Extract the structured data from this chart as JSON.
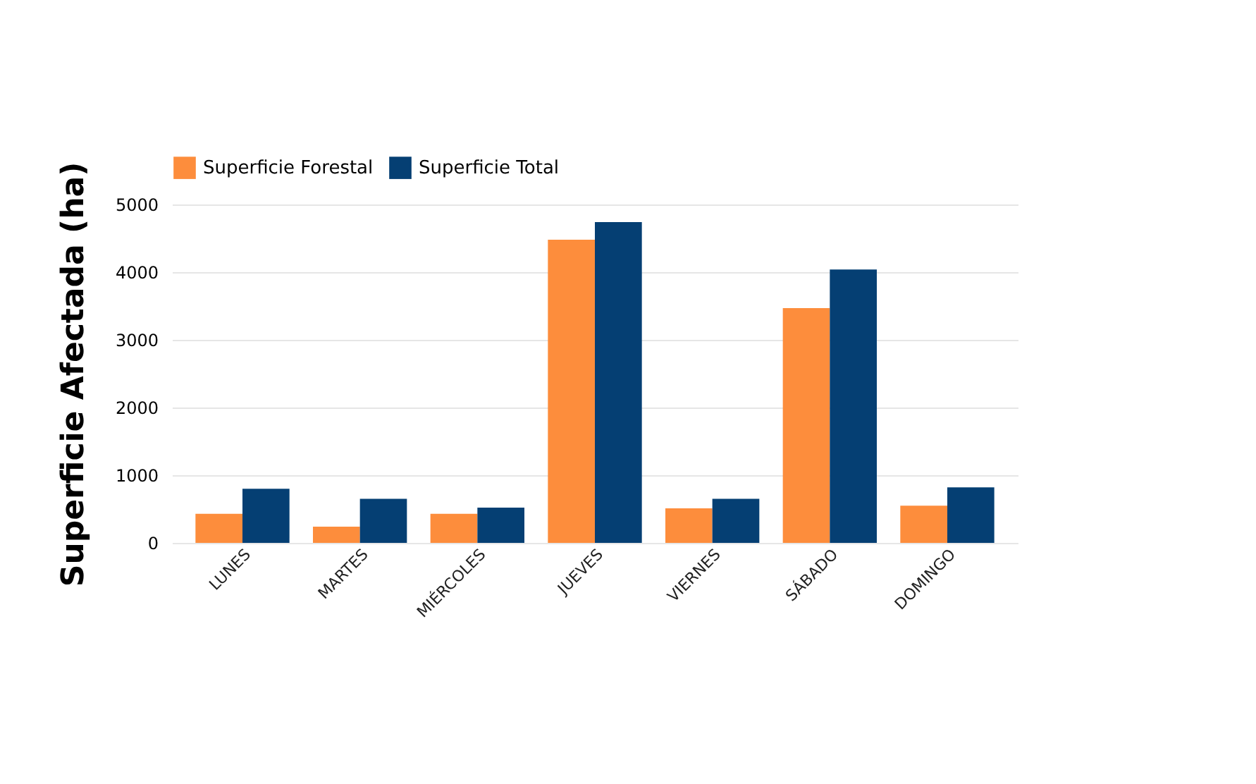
{
  "chart_data": {
    "type": "bar",
    "ylabel": "Superficie Afectada (ha)",
    "categories": [
      "LUNES",
      "MARTES",
      "MIÉRCOLES",
      "JUEVES",
      "VIERNES",
      "SÁBADO",
      "DOMINGO"
    ],
    "series": [
      {
        "name": "Superficie Forestal",
        "color": "#fd8d3c",
        "values": [
          430,
          240,
          430,
          4480,
          510,
          3470,
          550
        ]
      },
      {
        "name": "Superficie Total",
        "color": "#053f73",
        "values": [
          800,
          650,
          520,
          4740,
          650,
          4040,
          820
        ]
      }
    ],
    "ylim": [
      0,
      5000
    ],
    "yticks": [
      0,
      1000,
      2000,
      3000,
      4000,
      5000
    ],
    "grid": "y",
    "legend": "top"
  }
}
